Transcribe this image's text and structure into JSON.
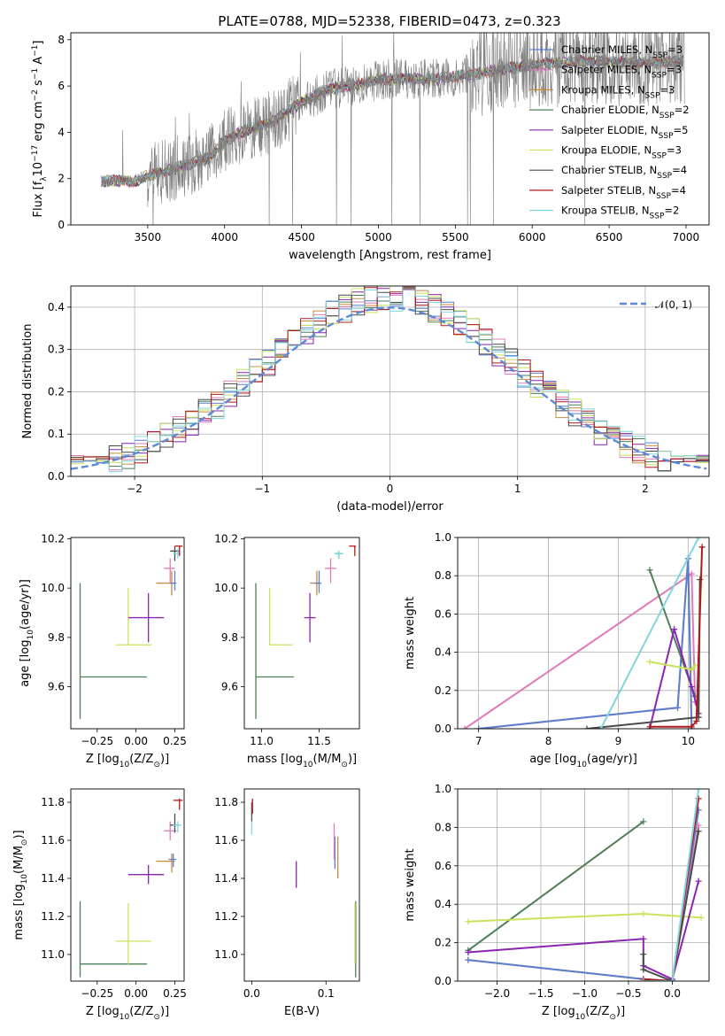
{
  "colors": {
    "Chabrier MILES": "#5b7fd1",
    "Salpeter MILES": "#e07ab9",
    "Kroupa MILES": "#c98a3e",
    "Chabrier ELODIE": "#4e7f58",
    "Salpeter ELODIE": "#8a24b1",
    "Kroupa ELODIE": "#c9e35a",
    "Chabrier STELIB": "#4a4a4a",
    "Salpeter STELIB": "#b21a1a",
    "Kroupa STELIB": "#7fd6de",
    "data": "#808080",
    "gauss": "#5b8ad6"
  },
  "chart_data": [
    {
      "id": "spectrum",
      "type": "line",
      "title": "PLATE=0788, MJD=52338, FIBERID=0473, z=0.323",
      "xlabel": "wavelength [Angstrom, rest frame]",
      "ylabel": "Flux [f$_\\lambda$10$^{-17}$ erg cm$^{-2}$ s$^{-1}$ A$^{-1}$]",
      "ylabel_parts": [
        "Flux [f",
        "λ",
        "10",
        "−17",
        " erg cm",
        "−2",
        " s",
        "−1",
        " A",
        "−1",
        "]"
      ],
      "xlim": [
        3000,
        7150
      ],
      "ylim": [
        0,
        8.3
      ],
      "xticks": [
        "3500",
        "4000",
        "4500",
        "5000",
        "5500",
        "6000",
        "6500",
        "7000"
      ],
      "yticks": [
        "0",
        "2",
        "4",
        "6",
        "8"
      ],
      "continuum_x": [
        3200,
        3400,
        3600,
        3800,
        3900,
        4000,
        4100,
        4300,
        4500,
        4700,
        4900,
        5000,
        5200,
        5400,
        5600,
        5800,
        6000,
        6200,
        6400,
        6600,
        6800,
        6980
      ],
      "continuum_y": [
        1.9,
        1.9,
        2.3,
        2.7,
        2.9,
        3.6,
        4.0,
        4.4,
        5.3,
        5.9,
        6.1,
        6.3,
        6.3,
        6.3,
        6.5,
        6.7,
        6.9,
        7.0,
        7.1,
        7.0,
        7.0,
        7.1
      ],
      "legend": [
        {
          "series": "Chabrier MILES",
          "label": "Chabrier MILES, N",
          "sub": "SSP",
          "n": "=3"
        },
        {
          "series": "Salpeter MILES",
          "label": "Salpeter MILES, N",
          "sub": "SSP",
          "n": "=3"
        },
        {
          "series": "Kroupa MILES",
          "label": "Kroupa MILES, N",
          "sub": "SSP",
          "n": "=3"
        },
        {
          "series": "Chabrier ELODIE",
          "label": "Chabrier ELODIE, N",
          "sub": "SSP",
          "n": "=2"
        },
        {
          "series": "Salpeter ELODIE",
          "label": "Salpeter ELODIE, N",
          "sub": "SSP",
          "n": "=5"
        },
        {
          "series": "Kroupa ELODIE",
          "label": "Kroupa ELODIE, N",
          "sub": "SSP",
          "n": "=3"
        },
        {
          "series": "Chabrier STELIB",
          "label": "Chabrier STELIB, N",
          "sub": "SSP",
          "n": "=4"
        },
        {
          "series": "Salpeter STELIB",
          "label": "Salpeter STELIB, N",
          "sub": "SSP",
          "n": "=4"
        },
        {
          "series": "Kroupa STELIB",
          "label": "Kroupa STELIB, N",
          "sub": "SSP",
          "n": "=2"
        }
      ],
      "legend_placement": "top-right"
    },
    {
      "id": "residuals",
      "type": "area",
      "xlabel": "(data-model)/error",
      "ylabel": "Normed distribution",
      "xlim": [
        -2.5,
        2.5
      ],
      "ylim": [
        0,
        0.45
      ],
      "xticks": [
        "−2",
        "−1",
        "0",
        "1",
        "2"
      ],
      "xtick_values": [
        -2,
        -1,
        0,
        1,
        2
      ],
      "yticks": [
        "0.0",
        "0.1",
        "0.2",
        "0.3",
        "0.4"
      ],
      "ytick_values": [
        0,
        0.1,
        0.2,
        0.3,
        0.4
      ],
      "bin_width": 0.1,
      "gauss_label": "𝒩(0, 1)",
      "grid": true,
      "legend_placement": "top-right"
    },
    {
      "id": "age_vs_Z",
      "type": "scatter",
      "xlabel": "Z [log10(Z/Z⊙)]",
      "ylabel": "age  [log10(age/yr)]",
      "xlim": [
        -0.42,
        0.31
      ],
      "ylim": [
        9.43,
        10.205
      ],
      "xticks": [
        "−0.25",
        "0.00",
        "0.25"
      ],
      "xtick_values": [
        -0.25,
        0,
        0.25
      ],
      "yticks": [
        "9.6",
        "9.8",
        "10.0",
        "10.2"
      ],
      "ytick_values": [
        9.6,
        9.8,
        10.0,
        10.2
      ],
      "points": [
        {
          "series": "Chabrier ELODIE",
          "x": -0.36,
          "y": 9.64,
          "xlo": -0.36,
          "xhi": 0.07,
          "ylo": 9.47,
          "yhi": 10.02
        },
        {
          "series": "Kroupa ELODIE",
          "x": -0.05,
          "y": 9.77,
          "xlo": -0.13,
          "xhi": 0.1,
          "ylo": 9.77,
          "yhi": 10.0
        },
        {
          "series": "Salpeter ELODIE",
          "x": 0.08,
          "y": 9.88,
          "xlo": -0.05,
          "xhi": 0.18,
          "ylo": 9.78,
          "yhi": 9.98
        },
        {
          "series": "Kroupa MILES",
          "x": 0.23,
          "y": 10.02,
          "xlo": 0.13,
          "xhi": 0.25,
          "ylo": 9.97,
          "yhi": 10.07
        },
        {
          "series": "Chabrier MILES",
          "x": 0.25,
          "y": 10.02,
          "xlo": 0.22,
          "xhi": 0.26,
          "ylo": 9.99,
          "yhi": 10.07
        },
        {
          "series": "Salpeter MILES",
          "x": 0.22,
          "y": 10.08,
          "xlo": 0.18,
          "xhi": 0.25,
          "ylo": 10.02,
          "yhi": 10.12
        },
        {
          "series": "Chabrier STELIB",
          "x": 0.25,
          "y": 10.15,
          "xlo": 0.22,
          "xhi": 0.28,
          "ylo": 10.11,
          "yhi": 10.17
        },
        {
          "series": "Kroupa STELIB",
          "x": 0.27,
          "y": 10.14,
          "xlo": 0.24,
          "xhi": 0.29,
          "ylo": 10.12,
          "yhi": 10.16
        },
        {
          "series": "Salpeter STELIB",
          "x": 0.28,
          "y": 10.17,
          "xlo": 0.25,
          "xhi": 0.3,
          "ylo": 10.13,
          "yhi": 10.17
        }
      ]
    },
    {
      "id": "age_vs_mass",
      "type": "scatter",
      "xlabel": "mass [log10(M/M⊙)]",
      "ylabel": "",
      "xlim": [
        10.85,
        11.85
      ],
      "ylim": [
        9.43,
        10.205
      ],
      "xticks": [
        "11.0",
        "11.5"
      ],
      "xtick_values": [
        11.0,
        11.5
      ],
      "yticks": [
        "9.6",
        "9.8",
        "10.0",
        "10.2"
      ],
      "ytick_values": [
        9.6,
        9.8,
        10.0,
        10.2
      ],
      "points": [
        {
          "series": "Chabrier ELODIE",
          "x": 10.95,
          "y": 9.64,
          "xlo": 10.95,
          "xhi": 11.28,
          "ylo": 9.47,
          "yhi": 10.02
        },
        {
          "series": "Kroupa ELODIE",
          "x": 11.07,
          "y": 9.77,
          "xlo": 11.07,
          "xhi": 11.27,
          "ylo": 9.77,
          "yhi": 10.0
        },
        {
          "series": "Salpeter ELODIE",
          "x": 11.42,
          "y": 9.88,
          "xlo": 11.37,
          "xhi": 11.47,
          "ylo": 9.78,
          "yhi": 9.98
        },
        {
          "series": "Kroupa MILES",
          "x": 11.48,
          "y": 10.02,
          "xlo": 11.42,
          "xhi": 11.52,
          "ylo": 9.97,
          "yhi": 10.07
        },
        {
          "series": "Chabrier MILES",
          "x": 11.5,
          "y": 10.02,
          "xlo": 11.46,
          "xhi": 11.52,
          "ylo": 9.98,
          "yhi": 10.07
        },
        {
          "series": "Salpeter MILES",
          "x": 11.6,
          "y": 10.08,
          "xlo": 11.55,
          "xhi": 11.65,
          "ylo": 10.02,
          "yhi": 10.12
        },
        {
          "series": "Chabrier STELIB",
          "x": 11.67,
          "y": 10.14,
          "xlo": 11.64,
          "xhi": 11.7,
          "ylo": 10.12,
          "yhi": 10.15
        },
        {
          "series": "Kroupa STELIB",
          "x": 11.67,
          "y": 10.14,
          "xlo": 11.63,
          "xhi": 11.71,
          "ylo": 10.12,
          "yhi": 10.15
        },
        {
          "series": "Salpeter STELIB",
          "x": 11.81,
          "y": 10.17,
          "xlo": 11.76,
          "xhi": 11.82,
          "ylo": 10.13,
          "yhi": 10.17
        }
      ]
    },
    {
      "id": "weight_vs_age",
      "type": "line",
      "xlabel": "age  [log10(age/yr)]",
      "ylabel": "mass weight",
      "xlim": [
        6.7,
        10.3
      ],
      "ylim": [
        0,
        1.0
      ],
      "xticks": [
        "7",
        "8",
        "9",
        "10"
      ],
      "xtick_values": [
        7,
        8,
        9,
        10
      ],
      "yticks": [
        "0.0",
        "0.2",
        "0.4",
        "0.6",
        "0.8",
        "1.0"
      ],
      "ytick_values": [
        0,
        0.2,
        0.4,
        0.6,
        0.8,
        1.0
      ],
      "grid": true,
      "series": [
        {
          "name": "Salpeter MILES",
          "x": [
            6.8,
            10.05,
            10.1
          ],
          "y": [
            0.0,
            0.81,
            0.14
          ]
        },
        {
          "name": "Kroupa MILES",
          "x": [
            7.0,
            9.85,
            10.0,
            10.05
          ],
          "y": [
            0.0,
            0.11,
            0.89,
            0.0
          ]
        },
        {
          "name": "Chabrier MILES",
          "x": [
            7.0,
            9.85,
            10.0,
            10.05
          ],
          "y": [
            0.0,
            0.11,
            0.89,
            0.0
          ]
        },
        {
          "name": "Chabrier ELODIE",
          "x": [
            9.45,
            10.1
          ],
          "y": [
            0.83,
            0.17
          ]
        },
        {
          "name": "Salpeter ELODIE",
          "x": [
            9.45,
            9.8,
            10.05,
            10.15
          ],
          "y": [
            0.0,
            0.52,
            0.22,
            0.08
          ]
        },
        {
          "name": "Kroupa ELODIE",
          "x": [
            9.45,
            10.05,
            10.1
          ],
          "y": [
            0.35,
            0.31,
            0.33
          ]
        },
        {
          "name": "Chabrier STELIB",
          "x": [
            8.55,
            10.15,
            10.17
          ],
          "y": [
            0.0,
            0.06,
            0.78
          ]
        },
        {
          "name": "Salpeter STELIB",
          "x": [
            9.45,
            10.05,
            10.12,
            10.2
          ],
          "y": [
            0.01,
            0.01,
            0.04,
            0.95
          ]
        },
        {
          "name": "Kroupa STELIB",
          "x": [
            8.75,
            10.15
          ],
          "y": [
            0.0,
            1.0
          ]
        }
      ]
    },
    {
      "id": "mass_vs_Z",
      "type": "scatter",
      "xlabel": "Z [log10(Z/Z⊙)]",
      "ylabel": "mass [log10(M/M⊙)]",
      "xlim": [
        -0.42,
        0.31
      ],
      "ylim": [
        10.86,
        11.87
      ],
      "xticks": [
        "−0.25",
        "0.00",
        "0.25"
      ],
      "xtick_values": [
        -0.25,
        0,
        0.25
      ],
      "yticks": [
        "11.0",
        "11.2",
        "11.4",
        "11.6",
        "11.8"
      ],
      "ytick_values": [
        11.0,
        11.2,
        11.4,
        11.6,
        11.8
      ],
      "points": [
        {
          "series": "Chabrier ELODIE",
          "x": -0.36,
          "y": 10.95,
          "xlo": -0.36,
          "xhi": 0.07,
          "ylo": 10.88,
          "yhi": 11.28
        },
        {
          "series": "Kroupa ELODIE",
          "x": -0.05,
          "y": 11.07,
          "xlo": -0.13,
          "xhi": 0.1,
          "ylo": 10.95,
          "yhi": 11.27
        },
        {
          "series": "Salpeter ELODIE",
          "x": 0.08,
          "y": 11.42,
          "xlo": -0.05,
          "xhi": 0.18,
          "ylo": 11.37,
          "yhi": 11.47
        },
        {
          "series": "Kroupa MILES",
          "x": 0.23,
          "y": 11.49,
          "xlo": 0.13,
          "xhi": 0.25,
          "ylo": 11.43,
          "yhi": 11.53
        },
        {
          "series": "Chabrier MILES",
          "x": 0.24,
          "y": 11.5,
          "xlo": 0.21,
          "xhi": 0.26,
          "ylo": 11.46,
          "yhi": 11.53
        },
        {
          "series": "Salpeter MILES",
          "x": 0.22,
          "y": 11.65,
          "xlo": 0.18,
          "xhi": 0.26,
          "ylo": 11.6,
          "yhi": 11.7
        },
        {
          "series": "Chabrier STELIB",
          "x": 0.25,
          "y": 11.68,
          "xlo": 0.22,
          "xhi": 0.28,
          "ylo": 11.64,
          "yhi": 11.74
        },
        {
          "series": "Kroupa STELIB",
          "x": 0.27,
          "y": 11.68,
          "xlo": 0.24,
          "xhi": 0.29,
          "ylo": 11.64,
          "yhi": 11.7
        },
        {
          "series": "Salpeter STELIB",
          "x": 0.28,
          "y": 11.81,
          "xlo": 0.24,
          "xhi": 0.3,
          "ylo": 11.76,
          "yhi": 11.82
        }
      ]
    },
    {
      "id": "mass_vs_ebv",
      "type": "scatter",
      "xlabel": "E(B-V)",
      "ylabel": "",
      "xlim": [
        -0.01,
        0.145
      ],
      "ylim": [
        10.86,
        11.87
      ],
      "xticks": [
        "0.0",
        "0.1"
      ],
      "xtick_values": [
        0,
        0.1
      ],
      "yticks": [
        "11.0",
        "11.2",
        "11.4",
        "11.6",
        "11.8"
      ],
      "ytick_values": [
        11.0,
        11.2,
        11.4,
        11.6,
        11.8
      ],
      "points": [
        {
          "series": "Chabrier ELODIE",
          "x": 0.14,
          "y": 11.05,
          "ylo": 10.88,
          "yhi": 11.28
        },
        {
          "series": "Kroupa ELODIE",
          "x": 0.139,
          "y": 11.1,
          "ylo": 10.95,
          "yhi": 11.27
        },
        {
          "series": "Salpeter ELODIE",
          "x": 0.06,
          "y": 11.42,
          "ylo": 11.35,
          "yhi": 11.49
        },
        {
          "series": "Kroupa MILES",
          "x": 0.116,
          "y": 11.5,
          "ylo": 11.4,
          "yhi": 11.62
        },
        {
          "series": "Chabrier MILES",
          "x": 0.112,
          "y": 11.55,
          "ylo": 11.45,
          "yhi": 11.62
        },
        {
          "series": "Salpeter MILES",
          "x": 0.111,
          "y": 11.6,
          "ylo": 11.5,
          "yhi": 11.69
        },
        {
          "series": "Kroupa STELIB",
          "x": 0.0,
          "y": 11.67,
          "ylo": 11.63,
          "yhi": 11.7
        },
        {
          "series": "Chabrier STELIB",
          "x": 0.0,
          "y": 11.75,
          "ylo": 11.7,
          "yhi": 11.8
        },
        {
          "series": "Salpeter STELIB",
          "x": 0.001,
          "y": 11.78,
          "ylo": 11.74,
          "yhi": 11.82
        }
      ]
    },
    {
      "id": "weight_vs_Z",
      "type": "line",
      "xlabel": "Z [log10(Z/Z⊙)]",
      "ylabel": "mass weight",
      "xlim": [
        -2.45,
        0.42
      ],
      "ylim": [
        0,
        1.0
      ],
      "xticks": [
        "−2.0",
        "−1.5",
        "−1.0",
        "−0.5",
        "0.0"
      ],
      "xtick_values": [
        -2,
        -1.5,
        -1,
        -0.5,
        0
      ],
      "yticks": [
        "0.0",
        "0.2",
        "0.4",
        "0.6",
        "0.8",
        "1.0"
      ],
      "ytick_values": [
        0,
        0.2,
        0.4,
        0.6,
        0.8,
        1.0
      ],
      "grid": true,
      "series": [
        {
          "name": "Chabrier ELODIE",
          "x": [
            -2.33,
            -0.33
          ],
          "y": [
            0.16,
            0.83
          ]
        },
        {
          "name": "Kroupa ELODIE",
          "x": [
            -2.33,
            -0.33,
            0.33
          ],
          "y": [
            0.31,
            0.35,
            0.33
          ]
        },
        {
          "name": "Salpeter ELODIE",
          "x": [
            -2.33,
            -0.33,
            -0.33,
            0.0,
            0.3
          ],
          "y": [
            0.15,
            0.22,
            0.08,
            0.01,
            0.52
          ]
        },
        {
          "name": "Kroupa MILES",
          "x": [
            -2.33,
            -0.33,
            0.0,
            0.3
          ],
          "y": [
            0.11,
            0.01,
            0.0,
            0.89
          ]
        },
        {
          "name": "Chabrier MILES",
          "x": [
            -2.33,
            -0.33,
            0.0,
            0.3
          ],
          "y": [
            0.11,
            0.01,
            0.0,
            0.89
          ]
        },
        {
          "name": "Salpeter MILES",
          "x": [
            -0.33,
            0.0,
            0.3
          ],
          "y": [
            0.0,
            0.0,
            0.81
          ]
        },
        {
          "name": "Chabrier STELIB",
          "x": [
            -0.33,
            -0.33,
            0.0,
            0.3
          ],
          "y": [
            0.14,
            0.06,
            0.0,
            0.78
          ]
        },
        {
          "name": "Salpeter STELIB",
          "x": [
            -0.33,
            0.0,
            0.3
          ],
          "y": [
            0.01,
            0.0,
            0.95
          ]
        },
        {
          "name": "Kroupa STELIB",
          "x": [
            -0.33,
            0.0,
            0.3
          ],
          "y": [
            0.0,
            0.0,
            1.0
          ]
        }
      ]
    }
  ]
}
